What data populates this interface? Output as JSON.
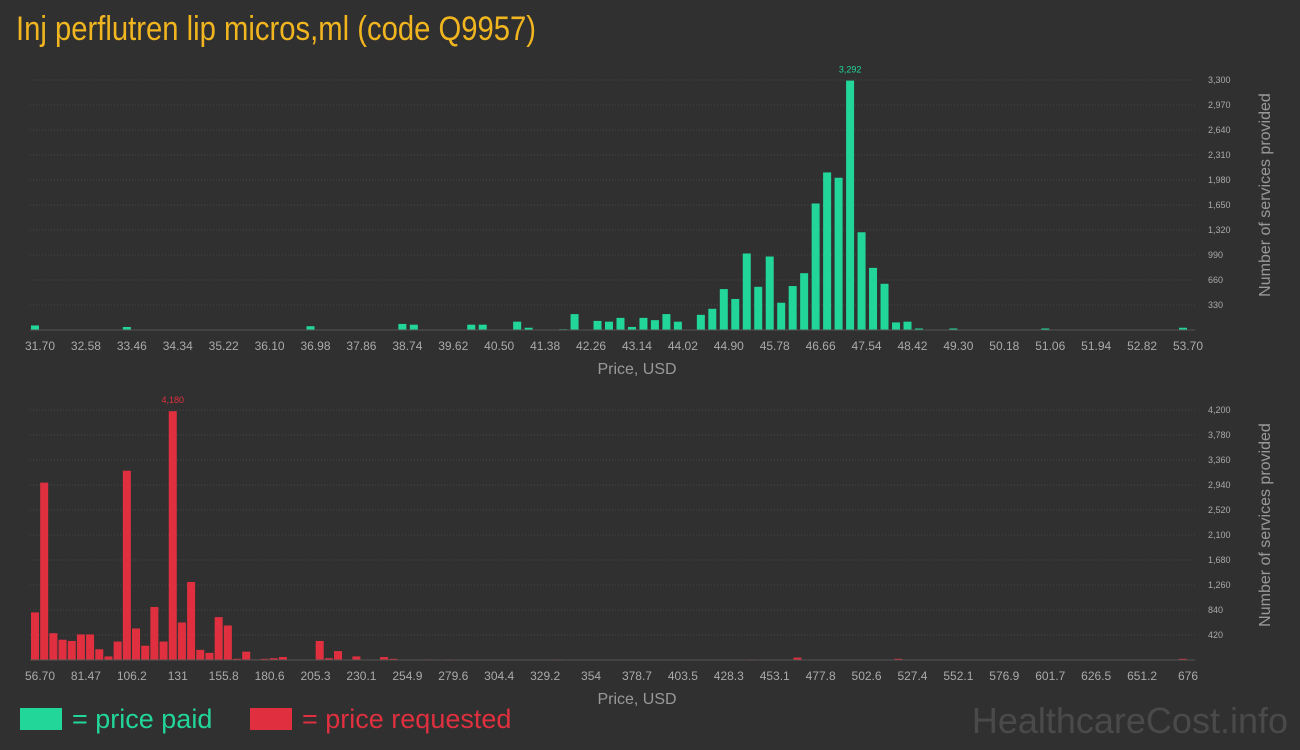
{
  "title": "Inj perflutren lip micros,ml (code Q9957)",
  "colors": {
    "paid": "#22d69a",
    "requested": "#e0303f",
    "title": "#f0b51f",
    "grid": "#464646"
  },
  "legend": {
    "paid_label": "= price paid",
    "requested_label": "= price requested"
  },
  "watermark": "HealthcareCost.info",
  "chart_data": [
    {
      "type": "bar",
      "series_name": "price paid",
      "xlabel": "Price, USD",
      "ylabel": "Number of services provided",
      "x_tick_labels": [
        "31.70",
        "32.58",
        "33.46",
        "34.34",
        "35.22",
        "36.10",
        "36.98",
        "37.86",
        "38.74",
        "39.62",
        "40.50",
        "41.38",
        "42.26",
        "43.14",
        "44.02",
        "44.90",
        "45.78",
        "46.66",
        "47.54",
        "48.42",
        "49.30",
        "50.18",
        "51.06",
        "51.94",
        "52.82",
        "53.70"
      ],
      "y_ticks": [
        330,
        660,
        990,
        1320,
        1650,
        1980,
        2310,
        2640,
        2970,
        3300
      ],
      "y_tick_labels": [
        "330",
        "660",
        "990",
        "1,320",
        "1,650",
        "1,980",
        "2,310",
        "2,640",
        "2,970",
        "3,300"
      ],
      "ylim": [
        0,
        3300
      ],
      "x_range": [
        31.7,
        53.7
      ],
      "max_label": "3,292",
      "x": [
        31.7,
        33.46,
        36.98,
        38.74,
        38.96,
        40.06,
        40.28,
        40.94,
        41.16,
        41.82,
        42.04,
        42.48,
        42.7,
        42.92,
        43.14,
        43.36,
        43.58,
        43.8,
        44.02,
        44.46,
        44.68,
        44.9,
        45.12,
        45.34,
        45.56,
        45.78,
        46.0,
        46.22,
        46.44,
        46.66,
        46.88,
        47.1,
        47.32,
        47.54,
        47.76,
        47.98,
        48.2,
        48.42,
        48.64,
        49.3,
        51.06,
        53.7
      ],
      "values": [
        60,
        40,
        50,
        80,
        70,
        70,
        70,
        110,
        30,
        10,
        210,
        120,
        110,
        160,
        40,
        160,
        130,
        210,
        110,
        200,
        280,
        540,
        410,
        1010,
        570,
        970,
        360,
        580,
        750,
        1670,
        2080,
        2010,
        3292,
        1290,
        820,
        610,
        100,
        110,
        20,
        20,
        20,
        30
      ]
    },
    {
      "type": "bar",
      "series_name": "price requested",
      "xlabel": "Price, USD",
      "ylabel": "Number of services provided",
      "x_tick_labels": [
        "56.70",
        "81.47",
        "106.2",
        "131",
        "155.8",
        "180.6",
        "205.3",
        "230.1",
        "254.9",
        "279.6",
        "304.4",
        "329.2",
        "354",
        "378.7",
        "403.5",
        "428.3",
        "453.1",
        "477.8",
        "502.6",
        "527.4",
        "552.1",
        "576.9",
        "601.7",
        "626.5",
        "651.2",
        "676"
      ],
      "y_ticks": [
        420,
        840,
        1260,
        1680,
        2100,
        2520,
        2940,
        3360,
        3780,
        4200
      ],
      "y_tick_labels": [
        "420",
        "840",
        "1,260",
        "1,680",
        "2,100",
        "2,520",
        "2,940",
        "3,360",
        "3,780",
        "4,200"
      ],
      "ylim": [
        0,
        4200
      ],
      "x_range": [
        56.7,
        676
      ],
      "max_label": "4,180",
      "x": [
        56.7,
        61.65,
        66.61,
        71.56,
        76.52,
        81.47,
        86.42,
        91.38,
        96.33,
        101.28,
        106.24,
        111.19,
        116.15,
        121.1,
        126.05,
        131.01,
        135.96,
        140.91,
        145.87,
        150.82,
        155.78,
        160.73,
        165.68,
        170.64,
        175.59,
        180.55,
        185.5,
        190.46,
        210.28,
        215.23,
        220.18,
        230.09,
        245.0,
        250.0,
        269.76,
        279.67,
        339.14,
        443.2,
        468.0,
        522.5,
        676.0
      ],
      "values": [
        800,
        2980,
        450,
        340,
        320,
        430,
        430,
        180,
        60,
        310,
        3180,
        530,
        240,
        890,
        310,
        4180,
        630,
        1310,
        170,
        120,
        720,
        580,
        20,
        140,
        10,
        20,
        30,
        50,
        320,
        30,
        150,
        60,
        50,
        20,
        10,
        10,
        10,
        10,
        40,
        20,
        20
      ]
    }
  ]
}
